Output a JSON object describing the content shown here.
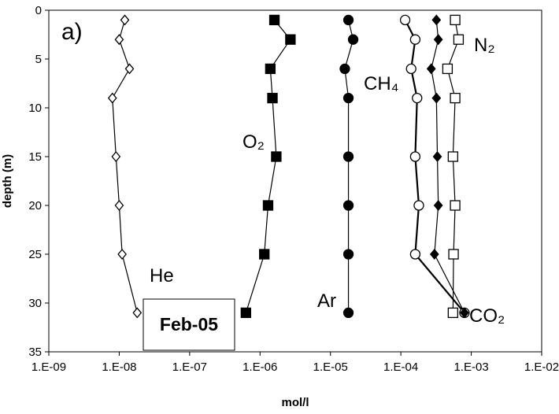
{
  "chart_data": {
    "type": "line",
    "annotations": [
      "a)",
      "Feb-05"
    ],
    "xlabel": "mol/l",
    "ylabel": "depth (m)",
    "xscale": "log",
    "y_inverted": true,
    "xlim": [
      1e-09,
      0.01
    ],
    "ylim": [
      0,
      35
    ],
    "xticks": [
      {
        "value": 1e-09,
        "label": "1.E-09"
      },
      {
        "value": 1e-08,
        "label": "1.E-08"
      },
      {
        "value": 1e-07,
        "label": "1.E-07"
      },
      {
        "value": 1e-06,
        "label": "1.E-06"
      },
      {
        "value": 1e-05,
        "label": "1.E-05"
      },
      {
        "value": 0.0001,
        "label": "1.E-04"
      },
      {
        "value": 0.001,
        "label": "1.E-03"
      },
      {
        "value": 0.01,
        "label": "1.E-02"
      }
    ],
    "yticks": [
      0,
      5,
      10,
      15,
      20,
      25,
      30,
      35
    ],
    "y": [
      1,
      3,
      6,
      9,
      15,
      20,
      25,
      31
    ],
    "series": [
      {
        "name": "He",
        "color": "#000000",
        "marker": "diamond-open",
        "values": [
          1.2e-08,
          1e-08,
          1.4e-08,
          8e-09,
          9e-09,
          1e-08,
          1.1e-08,
          1.8e-08
        ]
      },
      {
        "name": "O₂",
        "color": "#000000",
        "marker": "square-filled",
        "values": [
          1.6e-06,
          2.7e-06,
          1.4e-06,
          1.5e-06,
          1.7e-06,
          1.3e-06,
          1.15e-06,
          6.3e-07
        ]
      },
      {
        "name": "Ar",
        "color": "#000000",
        "marker": "circle-filled",
        "values": [
          1.8e-05,
          2.1e-05,
          1.6e-05,
          1.8e-05,
          1.8e-05,
          1.8e-05,
          1.8e-05,
          1.8e-05
        ]
      },
      {
        "name": "CH₄",
        "color": "#000000",
        "marker": "circle-open",
        "values": [
          0.000115,
          0.00016,
          0.00014,
          0.00017,
          0.00016,
          0.00018,
          0.00016,
          0.0008
        ]
      },
      {
        "name": "CO₂",
        "color": "#000000",
        "marker": "diamond-filled",
        "values": [
          0.00032,
          0.00034,
          0.00027,
          0.00032,
          0.00033,
          0.00034,
          0.0003,
          0.0008
        ]
      },
      {
        "name": "N₂",
        "color": "#000000",
        "marker": "square-open",
        "values": [
          0.00059,
          0.00066,
          0.00046,
          0.00059,
          0.00055,
          0.00059,
          0.00056,
          0.00055
        ]
      }
    ]
  }
}
